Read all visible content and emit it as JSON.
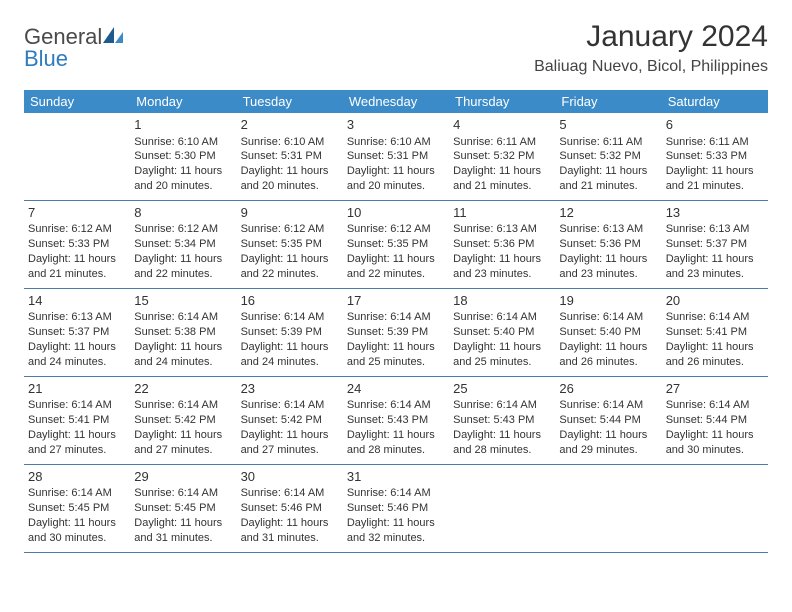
{
  "brand": {
    "part1": "General",
    "part2": "Blue"
  },
  "title": "January 2024",
  "location": "Baliuag Nuevo, Bicol, Philippines",
  "colors": {
    "header_bg": "#3b8bc9",
    "header_text": "#ffffff",
    "row_border": "#4a7ba8",
    "text": "#333333",
    "brand_gray": "#4a4a4a",
    "brand_blue": "#2f7bbf"
  },
  "weekdays": [
    "Sunday",
    "Monday",
    "Tuesday",
    "Wednesday",
    "Thursday",
    "Friday",
    "Saturday"
  ],
  "weeks": [
    [
      null,
      {
        "n": "1",
        "sunrise": "Sunrise: 6:10 AM",
        "sunset": "Sunset: 5:30 PM",
        "d1": "Daylight: 11 hours",
        "d2": "and 20 minutes."
      },
      {
        "n": "2",
        "sunrise": "Sunrise: 6:10 AM",
        "sunset": "Sunset: 5:31 PM",
        "d1": "Daylight: 11 hours",
        "d2": "and 20 minutes."
      },
      {
        "n": "3",
        "sunrise": "Sunrise: 6:10 AM",
        "sunset": "Sunset: 5:31 PM",
        "d1": "Daylight: 11 hours",
        "d2": "and 20 minutes."
      },
      {
        "n": "4",
        "sunrise": "Sunrise: 6:11 AM",
        "sunset": "Sunset: 5:32 PM",
        "d1": "Daylight: 11 hours",
        "d2": "and 21 minutes."
      },
      {
        "n": "5",
        "sunrise": "Sunrise: 6:11 AM",
        "sunset": "Sunset: 5:32 PM",
        "d1": "Daylight: 11 hours",
        "d2": "and 21 minutes."
      },
      {
        "n": "6",
        "sunrise": "Sunrise: 6:11 AM",
        "sunset": "Sunset: 5:33 PM",
        "d1": "Daylight: 11 hours",
        "d2": "and 21 minutes."
      }
    ],
    [
      {
        "n": "7",
        "sunrise": "Sunrise: 6:12 AM",
        "sunset": "Sunset: 5:33 PM",
        "d1": "Daylight: 11 hours",
        "d2": "and 21 minutes."
      },
      {
        "n": "8",
        "sunrise": "Sunrise: 6:12 AM",
        "sunset": "Sunset: 5:34 PM",
        "d1": "Daylight: 11 hours",
        "d2": "and 22 minutes."
      },
      {
        "n": "9",
        "sunrise": "Sunrise: 6:12 AM",
        "sunset": "Sunset: 5:35 PM",
        "d1": "Daylight: 11 hours",
        "d2": "and 22 minutes."
      },
      {
        "n": "10",
        "sunrise": "Sunrise: 6:12 AM",
        "sunset": "Sunset: 5:35 PM",
        "d1": "Daylight: 11 hours",
        "d2": "and 22 minutes."
      },
      {
        "n": "11",
        "sunrise": "Sunrise: 6:13 AM",
        "sunset": "Sunset: 5:36 PM",
        "d1": "Daylight: 11 hours",
        "d2": "and 23 minutes."
      },
      {
        "n": "12",
        "sunrise": "Sunrise: 6:13 AM",
        "sunset": "Sunset: 5:36 PM",
        "d1": "Daylight: 11 hours",
        "d2": "and 23 minutes."
      },
      {
        "n": "13",
        "sunrise": "Sunrise: 6:13 AM",
        "sunset": "Sunset: 5:37 PM",
        "d1": "Daylight: 11 hours",
        "d2": "and 23 minutes."
      }
    ],
    [
      {
        "n": "14",
        "sunrise": "Sunrise: 6:13 AM",
        "sunset": "Sunset: 5:37 PM",
        "d1": "Daylight: 11 hours",
        "d2": "and 24 minutes."
      },
      {
        "n": "15",
        "sunrise": "Sunrise: 6:14 AM",
        "sunset": "Sunset: 5:38 PM",
        "d1": "Daylight: 11 hours",
        "d2": "and 24 minutes."
      },
      {
        "n": "16",
        "sunrise": "Sunrise: 6:14 AM",
        "sunset": "Sunset: 5:39 PM",
        "d1": "Daylight: 11 hours",
        "d2": "and 24 minutes."
      },
      {
        "n": "17",
        "sunrise": "Sunrise: 6:14 AM",
        "sunset": "Sunset: 5:39 PM",
        "d1": "Daylight: 11 hours",
        "d2": "and 25 minutes."
      },
      {
        "n": "18",
        "sunrise": "Sunrise: 6:14 AM",
        "sunset": "Sunset: 5:40 PM",
        "d1": "Daylight: 11 hours",
        "d2": "and 25 minutes."
      },
      {
        "n": "19",
        "sunrise": "Sunrise: 6:14 AM",
        "sunset": "Sunset: 5:40 PM",
        "d1": "Daylight: 11 hours",
        "d2": "and 26 minutes."
      },
      {
        "n": "20",
        "sunrise": "Sunrise: 6:14 AM",
        "sunset": "Sunset: 5:41 PM",
        "d1": "Daylight: 11 hours",
        "d2": "and 26 minutes."
      }
    ],
    [
      {
        "n": "21",
        "sunrise": "Sunrise: 6:14 AM",
        "sunset": "Sunset: 5:41 PM",
        "d1": "Daylight: 11 hours",
        "d2": "and 27 minutes."
      },
      {
        "n": "22",
        "sunrise": "Sunrise: 6:14 AM",
        "sunset": "Sunset: 5:42 PM",
        "d1": "Daylight: 11 hours",
        "d2": "and 27 minutes."
      },
      {
        "n": "23",
        "sunrise": "Sunrise: 6:14 AM",
        "sunset": "Sunset: 5:42 PM",
        "d1": "Daylight: 11 hours",
        "d2": "and 27 minutes."
      },
      {
        "n": "24",
        "sunrise": "Sunrise: 6:14 AM",
        "sunset": "Sunset: 5:43 PM",
        "d1": "Daylight: 11 hours",
        "d2": "and 28 minutes."
      },
      {
        "n": "25",
        "sunrise": "Sunrise: 6:14 AM",
        "sunset": "Sunset: 5:43 PM",
        "d1": "Daylight: 11 hours",
        "d2": "and 28 minutes."
      },
      {
        "n": "26",
        "sunrise": "Sunrise: 6:14 AM",
        "sunset": "Sunset: 5:44 PM",
        "d1": "Daylight: 11 hours",
        "d2": "and 29 minutes."
      },
      {
        "n": "27",
        "sunrise": "Sunrise: 6:14 AM",
        "sunset": "Sunset: 5:44 PM",
        "d1": "Daylight: 11 hours",
        "d2": "and 30 minutes."
      }
    ],
    [
      {
        "n": "28",
        "sunrise": "Sunrise: 6:14 AM",
        "sunset": "Sunset: 5:45 PM",
        "d1": "Daylight: 11 hours",
        "d2": "and 30 minutes."
      },
      {
        "n": "29",
        "sunrise": "Sunrise: 6:14 AM",
        "sunset": "Sunset: 5:45 PM",
        "d1": "Daylight: 11 hours",
        "d2": "and 31 minutes."
      },
      {
        "n": "30",
        "sunrise": "Sunrise: 6:14 AM",
        "sunset": "Sunset: 5:46 PM",
        "d1": "Daylight: 11 hours",
        "d2": "and 31 minutes."
      },
      {
        "n": "31",
        "sunrise": "Sunrise: 6:14 AM",
        "sunset": "Sunset: 5:46 PM",
        "d1": "Daylight: 11 hours",
        "d2": "and 32 minutes."
      },
      null,
      null,
      null
    ]
  ]
}
